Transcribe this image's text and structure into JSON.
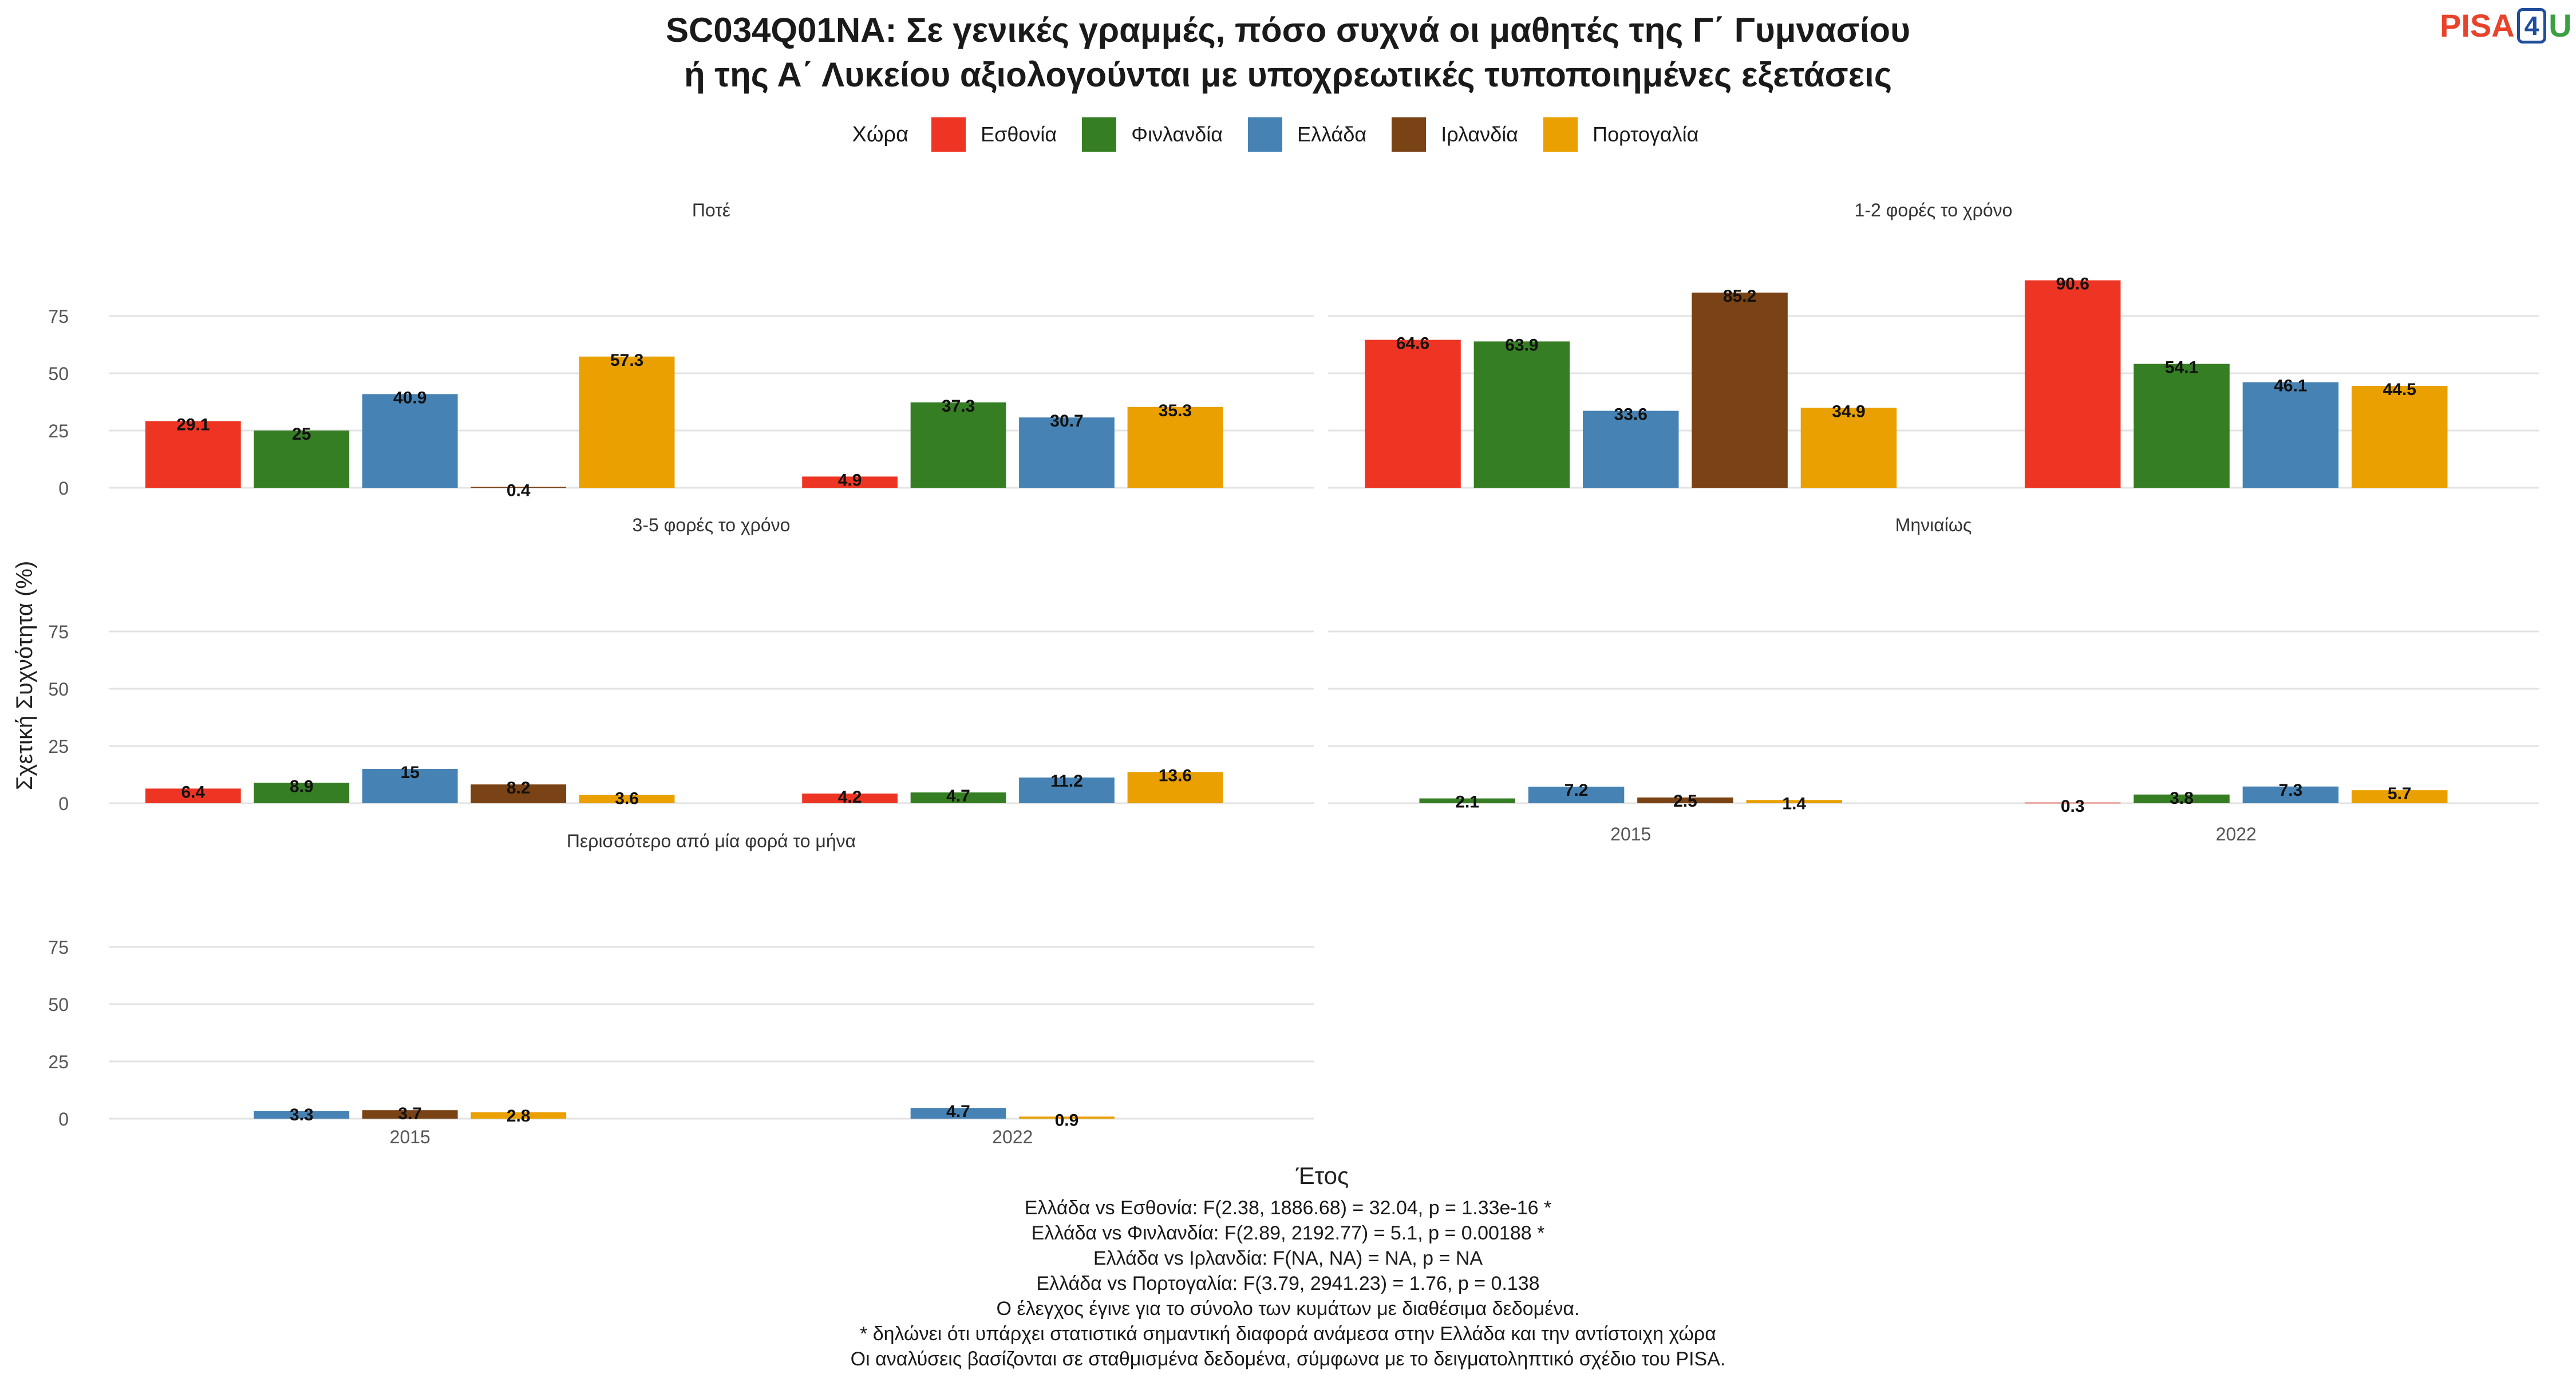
{
  "header": {
    "title_line1": "SC034Q01NA: Σε γενικές γραμμές, πόσο συχνά οι μαθητές της Γ΄ Γυμνασίου",
    "title_line2": "ή της Α΄ Λυκείου αξιολογούνται με υποχρεωτικές τυποποιημένες εξετάσεις",
    "logo_left": "PISA",
    "logo_mid": "4",
    "logo_right": "U"
  },
  "legend": {
    "title": "Χώρα",
    "items": [
      "Εσθονία",
      "Φινλανδία",
      "Ελλάδα",
      "Ιρλανδία",
      "Πορτογαλία"
    ]
  },
  "colors": {
    "Εσθονία": "#ee3524",
    "Φινλανδία": "#367e23",
    "Ελλάδα": "#4682b4",
    "Ιρλανδία": "#7a4315",
    "Πορτογαλία": "#e9a000"
  },
  "chart_data": {
    "type": "bar",
    "xlabel": "Έτος",
    "ylabel": "Σχετική Συχνότητα (%)",
    "ylim": [
      0,
      90
    ],
    "yticks": [
      0,
      25,
      50,
      75
    ],
    "grid": true,
    "legend_position": "top",
    "categories": [
      "2015",
      "2022"
    ],
    "countries": [
      "Εσθονία",
      "Φινλανδία",
      "Ελλάδα",
      "Ιρλανδία",
      "Πορτογαλία"
    ],
    "panels": [
      {
        "title": "Ποτέ",
        "series": [
          {
            "name": "Εσθονία",
            "values": [
              29.1,
              4.9
            ]
          },
          {
            "name": "Φινλανδία",
            "values": [
              25,
              37.3
            ]
          },
          {
            "name": "Ελλάδα",
            "values": [
              40.9,
              30.7
            ]
          },
          {
            "name": "Ιρλανδία",
            "values": [
              0.4,
              null
            ]
          },
          {
            "name": "Πορτογαλία",
            "values": [
              57.3,
              35.3
            ]
          }
        ]
      },
      {
        "title": "1-2 φορές το χρόνο",
        "series": [
          {
            "name": "Εσθονία",
            "values": [
              64.6,
              90.6
            ]
          },
          {
            "name": "Φινλανδία",
            "values": [
              63.9,
              54.1
            ]
          },
          {
            "name": "Ελλάδα",
            "values": [
              33.6,
              46.1
            ]
          },
          {
            "name": "Ιρλανδία",
            "values": [
              85.2,
              null
            ]
          },
          {
            "name": "Πορτογαλία",
            "values": [
              34.9,
              44.5
            ]
          }
        ]
      },
      {
        "title": "3-5 φορές το χρόνο",
        "series": [
          {
            "name": "Εσθονία",
            "values": [
              6.4,
              4.2
            ]
          },
          {
            "name": "Φινλανδία",
            "values": [
              8.9,
              4.7
            ]
          },
          {
            "name": "Ελλάδα",
            "values": [
              15,
              11.2
            ]
          },
          {
            "name": "Ιρλανδία",
            "values": [
              8.2,
              null
            ]
          },
          {
            "name": "Πορτογαλία",
            "values": [
              3.6,
              13.6
            ]
          }
        ]
      },
      {
        "title": "Μηνιαίως",
        "series": [
          {
            "name": "Εσθονία",
            "values": [
              null,
              0.3
            ]
          },
          {
            "name": "Φινλανδία",
            "values": [
              2.1,
              3.8
            ]
          },
          {
            "name": "Ελλάδα",
            "values": [
              7.2,
              7.3
            ]
          },
          {
            "name": "Ιρλανδία",
            "values": [
              2.5,
              null
            ]
          },
          {
            "name": "Πορτογαλία",
            "values": [
              1.4,
              5.7
            ]
          }
        ]
      },
      {
        "title": "Περισσότερο από μία φορά το μήνα",
        "series": [
          {
            "name": "Εσθονία",
            "values": [
              null,
              null
            ]
          },
          {
            "name": "Φινλανδία",
            "values": [
              null,
              null
            ]
          },
          {
            "name": "Ελλάδα",
            "values": [
              3.3,
              4.7
            ]
          },
          {
            "name": "Ιρλανδία",
            "values": [
              3.7,
              null
            ]
          },
          {
            "name": "Πορτογαλία",
            "values": [
              2.8,
              0.9
            ]
          }
        ]
      }
    ]
  },
  "notes": [
    "Ελλάδα vs Εσθονία: F(2.38, 1886.68) = 32.04, p = 1.33e-16 *",
    "Ελλάδα vs Φινλανδία: F(2.89, 2192.77) = 5.1, p = 0.00188 *",
    "Ελλάδα vs Ιρλανδία: F(NA, NA) = NA, p = NA",
    "Ελλάδα vs Πορτογαλία: F(3.79, 2941.23) = 1.76, p = 0.138",
    "Ο έλεγχος έγινε για το σύνολο των κυμάτων με διαθέσιμα δεδομένα.",
    "* δηλώνει ότι υπάρχει στατιστικά σημαντική διαφορά ανάμεσα στην Ελλάδα και την αντίστοιχη χώρα",
    "Οι αναλύσεις βασίζονται σε σταθμισμένα δεδομένα, σύμφωνα με το δειγματοληπτικό σχέδιο του PISA."
  ]
}
